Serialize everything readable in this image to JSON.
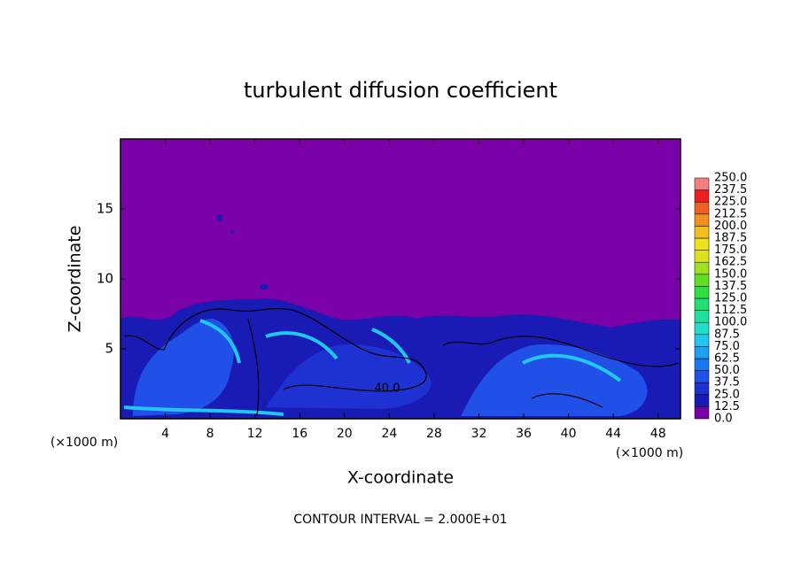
{
  "chart_data": {
    "type": "contour",
    "title": "turbulent diffusion coefficient",
    "x_label": "X-coordinate",
    "y_label": "Z-coordinate",
    "x_unit": "(×1000 m)",
    "y_unit": "(×1000 m)",
    "footer": "CONTOUR INTERVAL = 2.000E+01",
    "contour_label": "40.0",
    "xlim": [
      0,
      50
    ],
    "xticks": [
      4,
      8,
      12,
      16,
      20,
      24,
      28,
      32,
      36,
      40,
      44,
      48
    ],
    "ylim": [
      0,
      20
    ],
    "yticks": [
      5,
      10,
      15
    ],
    "levels": [
      {
        "value": 0,
        "label": "0.0"
      },
      12.5,
      {
        "value": 25,
        "label": "25.0"
      },
      37.5,
      {
        "value": 50,
        "label": "50.0"
      },
      62.5,
      {
        "value": 75,
        "label": "75.0"
      },
      87.5,
      {
        "value": 100,
        "label": "100.0"
      },
      112.5,
      {
        "value": 125,
        "label": "125.0"
      },
      137.5,
      {
        "value": 150,
        "label": "150.0"
      },
      162.5,
      {
        "value": 175,
        "label": "175.0"
      },
      187.5,
      {
        "value": 200,
        "label": "200.0"
      },
      212.5,
      {
        "value": 225,
        "label": "225.0"
      },
      237.5,
      {
        "value": 250,
        "label": "250.0"
      }
    ],
    "colors": [
      "#7a00a8",
      "#1a1ab4",
      "#1e32d2",
      "#2050e8",
      "#1878f0",
      "#20a0f0",
      "#20c8f0",
      "#20e0c8",
      "#20e0a0",
      "#20e070",
      "#30e040",
      "#60e020",
      "#a0e020",
      "#e0e020",
      "#f0e020",
      "#f0c020",
      "#f09020",
      "#f06020",
      "#f02020",
      "#f08080"
    ]
  }
}
